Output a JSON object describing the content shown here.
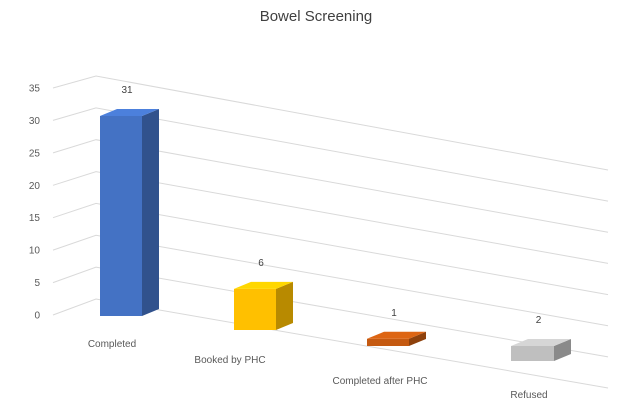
{
  "chart_data": {
    "type": "bar",
    "title": "Bowel Screening",
    "categories": [
      "Completed",
      "Booked by PHC",
      "Completed after PHC",
      "Refused"
    ],
    "values": [
      31,
      6,
      1,
      2
    ],
    "ylim": [
      0,
      35
    ],
    "yticks": [
      0,
      5,
      10,
      15,
      20,
      25,
      30,
      35
    ],
    "grid": true,
    "data_labels": true,
    "three_d": true,
    "colors": [
      "#4472c4",
      "#ffc000",
      "#c55a11",
      "#bfbfbf"
    ]
  }
}
